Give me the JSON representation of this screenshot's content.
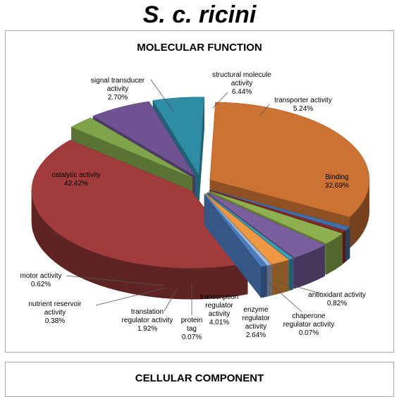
{
  "page": {
    "title": "S. c. ricini"
  },
  "chart_data": {
    "type": "pie",
    "title": "MOLECULAR FUNCTION",
    "series": [
      {
        "name": "Binding",
        "value": 32.69,
        "display": "32.69%",
        "color": "#cc7232"
      },
      {
        "name": "antioxidant activity",
        "value": 0.82,
        "display": "0.82%",
        "color": "#3f6ea8"
      },
      {
        "name": "chaperone regulator activity",
        "value": 0.07,
        "display": "0.07%",
        "color": "#8b2a2a"
      },
      {
        "name": "enzyme regulator activity",
        "value": 2.64,
        "display": "2.64%",
        "color": "#8fb04e"
      },
      {
        "name": "transcription regulator activity",
        "value": 4.01,
        "display": "4.01%",
        "color": "#7a5f9e"
      },
      {
        "name": "protein tag",
        "value": 0.07,
        "display": "0.07%",
        "color": "#3aa0b8"
      },
      {
        "name": "translation regulator activity",
        "value": 1.92,
        "display": "1.92%",
        "color": "#ef9843"
      },
      {
        "name": "nutrient reservoir activity",
        "value": 0.38,
        "display": "0.38%",
        "color": "#9fb8dc"
      },
      {
        "name": "motor activity",
        "value": 0.62,
        "display": "0.62%",
        "color": "#4a7cc0"
      },
      {
        "name": "catalytic activity",
        "value": 42.42,
        "display": "42.42%",
        "color": "#a23c3c"
      },
      {
        "name": "signal transducer activity",
        "value": 2.7,
        "display": "2.70%",
        "color": "#7fa44a"
      },
      {
        "name": "structural molecule activity",
        "value": 6.44,
        "display": "6.44%",
        "color": "#6e5292"
      },
      {
        "name": "transporter activity",
        "value": 5.24,
        "display": "5.24%",
        "color": "#2e8ca4"
      }
    ],
    "labels": [
      {
        "series": "Binding",
        "lines": [
          "Binding",
          "32.69%"
        ]
      },
      {
        "series": "antioxidant activity",
        "lines": [
          "antioxidant activity",
          "0.82%"
        ]
      },
      {
        "series": "chaperone regulator activity",
        "lines": [
          "chaperone",
          "regulator activity",
          "0.07%"
        ]
      },
      {
        "series": "enzyme regulator activity",
        "lines": [
          "enzyme",
          "regulator",
          "activity",
          "2.64%"
        ]
      },
      {
        "series": "transcription regulator activity",
        "lines": [
          "transcription",
          "regulator",
          "activity",
          "4.01%"
        ]
      },
      {
        "series": "protein tag",
        "lines": [
          "protein",
          "tag",
          "0.07%"
        ]
      },
      {
        "series": "translation regulator activity",
        "lines": [
          "translation",
          "regulator activity",
          "1.92%"
        ]
      },
      {
        "series": "nutrient reservoir activity",
        "lines": [
          "nutrient reservoir",
          "activity",
          "0.38%"
        ]
      },
      {
        "series": "motor activity",
        "lines": [
          "motor activity",
          "0.62%"
        ]
      },
      {
        "series": "catalytic activity",
        "lines": [
          "catalytic activity",
          "42.42%"
        ]
      },
      {
        "series": "signal transducer activity",
        "lines": [
          "signal transducer",
          "activity",
          "2.70%"
        ]
      },
      {
        "series": "structural molecule activity",
        "lines": [
          "structural molecule",
          "activity",
          "6.44%"
        ]
      },
      {
        "series": "transporter activity",
        "lines": [
          "transporter activity",
          "5.24%"
        ]
      }
    ]
  },
  "second_panel": {
    "title": "CELLULAR COMPONENT"
  }
}
